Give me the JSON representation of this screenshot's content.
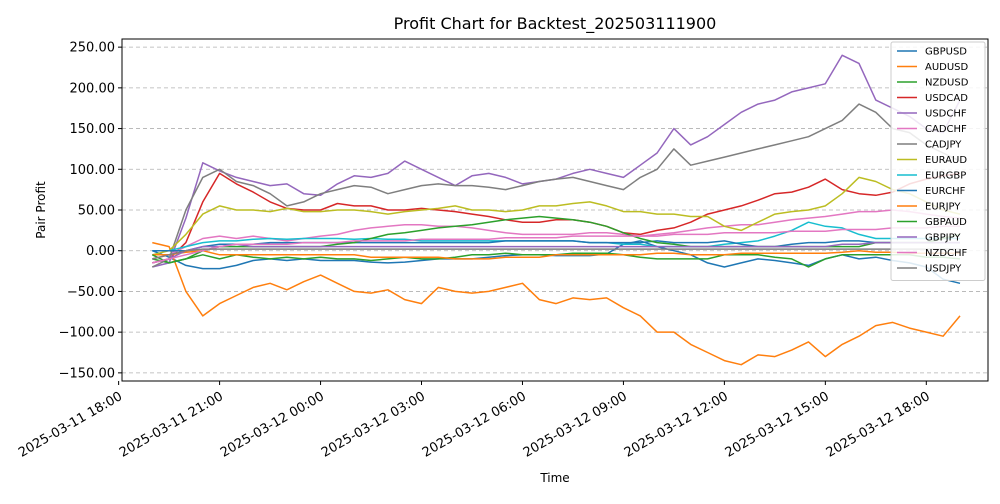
{
  "chart_data": {
    "type": "line",
    "title": "Profit Chart for Backtest_202503111900",
    "xlabel": "Time",
    "ylabel": "Pair Profit",
    "ylim": [
      -160,
      260
    ],
    "xlim": [
      "2025-03-11 18:06",
      "2025-03-12 19:50"
    ],
    "x_ticks": [
      {
        "t": "2025-03-11 18:00",
        "label": "2025-03-11 18:00"
      },
      {
        "t": "2025-03-11 21:00",
        "label": "2025-03-11 21:00"
      },
      {
        "t": "2025-03-12 00:00",
        "label": "2025-03-12 00:00"
      },
      {
        "t": "2025-03-12 03:00",
        "label": "2025-03-12 03:00"
      },
      {
        "t": "2025-03-12 06:00",
        "label": "2025-03-12 06:00"
      },
      {
        "t": "2025-03-12 09:00",
        "label": "2025-03-12 09:00"
      },
      {
        "t": "2025-03-12 12:00",
        "label": "2025-03-12 12:00"
      },
      {
        "t": "2025-03-12 15:00",
        "label": "2025-03-12 15:00"
      },
      {
        "t": "2025-03-12 18:00",
        "label": "2025-03-12 18:00"
      }
    ],
    "y_ticks": [
      {
        "v": -150,
        "label": "−150.00"
      },
      {
        "v": -100,
        "label": "−100.00"
      },
      {
        "v": -50,
        "label": "−50.00"
      },
      {
        "v": 0,
        "label": "0.00"
      },
      {
        "v": 50,
        "label": "50.00"
      },
      {
        "v": 100,
        "label": "100.00"
      },
      {
        "v": 150,
        "label": "150.00"
      },
      {
        "v": 200,
        "label": "200.00"
      },
      {
        "v": 250,
        "label": "250.00"
      }
    ],
    "grid": true,
    "legend_position": "top-right",
    "x": [
      "2025-03-11 19:00",
      "2025-03-11 19:30",
      "2025-03-11 20:00",
      "2025-03-11 20:30",
      "2025-03-11 21:00",
      "2025-03-11 21:30",
      "2025-03-11 22:00",
      "2025-03-11 22:30",
      "2025-03-11 23:00",
      "2025-03-11 23:30",
      "2025-03-12 00:00",
      "2025-03-12 00:30",
      "2025-03-12 01:00",
      "2025-03-12 01:30",
      "2025-03-12 02:00",
      "2025-03-12 02:30",
      "2025-03-12 03:00",
      "2025-03-12 03:30",
      "2025-03-12 04:00",
      "2025-03-12 04:30",
      "2025-03-12 05:00",
      "2025-03-12 05:30",
      "2025-03-12 06:00",
      "2025-03-12 06:30",
      "2025-03-12 07:00",
      "2025-03-12 07:30",
      "2025-03-12 08:00",
      "2025-03-12 08:30",
      "2025-03-12 09:00",
      "2025-03-12 09:30",
      "2025-03-12 10:00",
      "2025-03-12 10:30",
      "2025-03-12 11:00",
      "2025-03-12 11:30",
      "2025-03-12 12:00",
      "2025-03-12 12:30",
      "2025-03-12 13:00",
      "2025-03-12 13:30",
      "2025-03-12 14:00",
      "2025-03-12 14:30",
      "2025-03-12 15:00",
      "2025-03-12 15:30",
      "2025-03-12 16:00",
      "2025-03-12 16:30",
      "2025-03-12 17:00",
      "2025-03-12 17:30",
      "2025-03-12 18:00",
      "2025-03-12 18:30",
      "2025-03-12 19:00"
    ],
    "series": [
      {
        "name": "GBPUSD",
        "color": "#1f77b4",
        "values": [
          0,
          -8,
          -18,
          -22,
          -22,
          -18,
          -12,
          -10,
          -12,
          -10,
          -12,
          -12,
          -12,
          -14,
          -15,
          -14,
          -12,
          -10,
          -10,
          -10,
          -8,
          -6,
          -5,
          -5,
          -6,
          -6,
          -6,
          -4,
          8,
          12,
          5,
          0,
          -5,
          -15,
          -20,
          -15,
          -10,
          -12,
          -15,
          -18,
          -10,
          -5,
          -10,
          -8,
          -12,
          -15,
          -20,
          -35,
          -40
        ]
      },
      {
        "name": "AUDUSD",
        "color": "#ff7f0e",
        "values": [
          10,
          5,
          -50,
          -80,
          -65,
          -55,
          -45,
          -40,
          -48,
          -38,
          -30,
          -40,
          -50,
          -52,
          -48,
          -60,
          -65,
          -45,
          -50,
          -52,
          -50,
          -45,
          -40,
          -60,
          -65,
          -58,
          -60,
          -58,
          -70,
          -80,
          -100,
          -100,
          -115,
          -125,
          -135,
          -140,
          -128,
          -130,
          -122,
          -112,
          -130,
          -115,
          -105,
          -92,
          -88,
          -95,
          -100,
          -105,
          -80
        ]
      },
      {
        "name": "NZDUSD",
        "color": "#2ca02c",
        "values": [
          -10,
          -15,
          -10,
          -5,
          -10,
          -5,
          -8,
          -10,
          -8,
          -10,
          -8,
          -10,
          -10,
          -12,
          -10,
          -8,
          -10,
          -10,
          -8,
          -5,
          -5,
          -3,
          -5,
          -5,
          -5,
          -3,
          -3,
          -3,
          -5,
          -8,
          -10,
          -10,
          -10,
          -10,
          -5,
          -5,
          -5,
          -8,
          -10,
          -20,
          -10,
          -5,
          -5,
          -5,
          -5,
          -5,
          -8,
          -8,
          -10
        ]
      },
      {
        "name": "USDCAD",
        "color": "#d62728",
        "values": [
          -15,
          -10,
          10,
          60,
          95,
          82,
          72,
          60,
          52,
          50,
          50,
          58,
          55,
          55,
          50,
          50,
          52,
          50,
          48,
          45,
          42,
          38,
          35,
          35,
          38,
          38,
          35,
          30,
          22,
          20,
          25,
          28,
          35,
          45,
          50,
          55,
          62,
          70,
          72,
          78,
          88,
          75,
          70,
          68,
          72,
          82,
          88,
          92,
          95
        ]
      },
      {
        "name": "USDCHF",
        "color": "#9467bd",
        "values": [
          -20,
          -15,
          40,
          108,
          98,
          90,
          85,
          80,
          82,
          70,
          68,
          82,
          92,
          90,
          95,
          110,
          100,
          90,
          80,
          92,
          95,
          90,
          82,
          85,
          88,
          95,
          100,
          95,
          90,
          105,
          120,
          150,
          130,
          140,
          155,
          170,
          180,
          185,
          195,
          200,
          205,
          240,
          230,
          185,
          175,
          165,
          150,
          145,
          185
        ]
      },
      {
        "name": "CADCHF",
        "color": "#e377c2",
        "values": [
          -10,
          -5,
          5,
          15,
          18,
          15,
          18,
          15,
          12,
          15,
          18,
          20,
          25,
          28,
          30,
          32,
          32,
          30,
          30,
          28,
          25,
          22,
          20,
          20,
          20,
          20,
          22,
          22,
          20,
          18,
          20,
          22,
          25,
          28,
          30,
          32,
          32,
          35,
          38,
          40,
          42,
          45,
          48,
          48,
          50,
          48,
          45,
          42,
          40
        ]
      },
      {
        "name": "CADJPY",
        "color": "#7f7f7f",
        "values": [
          -20,
          -10,
          50,
          90,
          100,
          85,
          80,
          70,
          55,
          60,
          70,
          75,
          80,
          78,
          70,
          75,
          80,
          82,
          80,
          80,
          78,
          75,
          80,
          85,
          88,
          90,
          85,
          80,
          75,
          90,
          100,
          125,
          105,
          110,
          115,
          120,
          125,
          130,
          135,
          140,
          150,
          160,
          180,
          170,
          150,
          145,
          130,
          120,
          110
        ]
      },
      {
        "name": "EURAUD",
        "color": "#bcbd22",
        "values": [
          -5,
          0,
          20,
          45,
          55,
          50,
          50,
          48,
          52,
          48,
          48,
          50,
          50,
          48,
          45,
          48,
          50,
          52,
          55,
          50,
          50,
          48,
          50,
          55,
          55,
          58,
          60,
          55,
          48,
          48,
          45,
          45,
          42,
          42,
          30,
          25,
          35,
          45,
          48,
          50,
          55,
          70,
          90,
          85,
          75,
          70,
          60,
          50,
          45
        ]
      },
      {
        "name": "EURGBP",
        "color": "#17becf",
        "values": [
          0,
          0,
          5,
          10,
          12,
          12,
          14,
          15,
          14,
          15,
          15,
          15,
          14,
          15,
          14,
          14,
          12,
          12,
          12,
          12,
          12,
          12,
          12,
          12,
          12,
          12,
          10,
          10,
          8,
          8,
          5,
          5,
          5,
          5,
          8,
          10,
          12,
          18,
          25,
          35,
          30,
          28,
          20,
          15,
          15,
          15,
          15,
          15,
          15
        ]
      },
      {
        "name": "EURCHF",
        "color": "#1f77b4",
        "values": [
          0,
          0,
          0,
          5,
          8,
          8,
          8,
          10,
          10,
          10,
          10,
          10,
          10,
          10,
          10,
          10,
          10,
          10,
          10,
          10,
          10,
          12,
          12,
          12,
          12,
          12,
          10,
          10,
          10,
          10,
          12,
          10,
          10,
          10,
          12,
          8,
          5,
          5,
          8,
          10,
          10,
          12,
          12,
          10,
          10,
          10,
          10,
          10,
          10
        ]
      },
      {
        "name": "EURJPY",
        "color": "#ff7f0e",
        "values": [
          -5,
          -5,
          -2,
          0,
          -5,
          -5,
          -5,
          -5,
          -5,
          -5,
          -5,
          -5,
          -5,
          -8,
          -8,
          -8,
          -8,
          -8,
          -10,
          -10,
          -10,
          -8,
          -8,
          -8,
          -5,
          -5,
          -5,
          -5,
          -5,
          -5,
          -3,
          -3,
          -5,
          -5,
          -5,
          -3,
          -3,
          -3,
          -3,
          -3,
          -3,
          -2,
          0,
          -2,
          -2,
          -3,
          -3,
          -3,
          -3
        ]
      },
      {
        "name": "GBPAUD",
        "color": "#2ca02c",
        "values": [
          -5,
          -15,
          -10,
          0,
          5,
          5,
          5,
          5,
          5,
          5,
          5,
          8,
          10,
          15,
          20,
          22,
          25,
          28,
          30,
          32,
          35,
          38,
          40,
          42,
          40,
          38,
          35,
          30,
          22,
          15,
          10,
          8,
          5,
          5,
          5,
          5,
          5,
          5,
          5,
          5,
          5,
          5,
          5,
          10,
          10,
          10,
          10,
          15,
          20
        ]
      },
      {
        "name": "GBPJPY",
        "color": "#9467bd",
        "values": [
          -15,
          -10,
          0,
          5,
          5,
          8,
          5,
          5,
          5,
          5,
          5,
          5,
          5,
          5,
          5,
          5,
          5,
          5,
          5,
          5,
          5,
          5,
          5,
          5,
          5,
          5,
          5,
          5,
          5,
          5,
          5,
          5,
          5,
          5,
          5,
          5,
          5,
          5,
          5,
          5,
          5,
          8,
          8,
          10,
          10,
          10,
          10,
          10,
          10
        ]
      },
      {
        "name": "NZDCHF",
        "color": "#e377c2",
        "values": [
          -15,
          -10,
          -5,
          0,
          5,
          8,
          8,
          8,
          8,
          10,
          10,
          10,
          12,
          12,
          12,
          12,
          14,
          14,
          14,
          14,
          14,
          16,
          16,
          16,
          16,
          18,
          18,
          18,
          18,
          18,
          18,
          20,
          20,
          20,
          22,
          22,
          22,
          22,
          24,
          24,
          24,
          26,
          26,
          26,
          28,
          28,
          28,
          30,
          30
        ]
      },
      {
        "name": "USDJPY",
        "color": "#7f7f7f",
        "values": [
          -10,
          -5,
          0,
          2,
          2,
          2,
          2,
          2,
          2,
          2,
          2,
          2,
          2,
          2,
          2,
          2,
          2,
          2,
          2,
          2,
          2,
          2,
          2,
          2,
          2,
          2,
          2,
          2,
          2,
          2,
          2,
          2,
          2,
          2,
          2,
          2,
          2,
          2,
          2,
          2,
          2,
          2,
          2,
          2,
          2,
          2,
          2,
          2,
          2
        ]
      }
    ]
  }
}
